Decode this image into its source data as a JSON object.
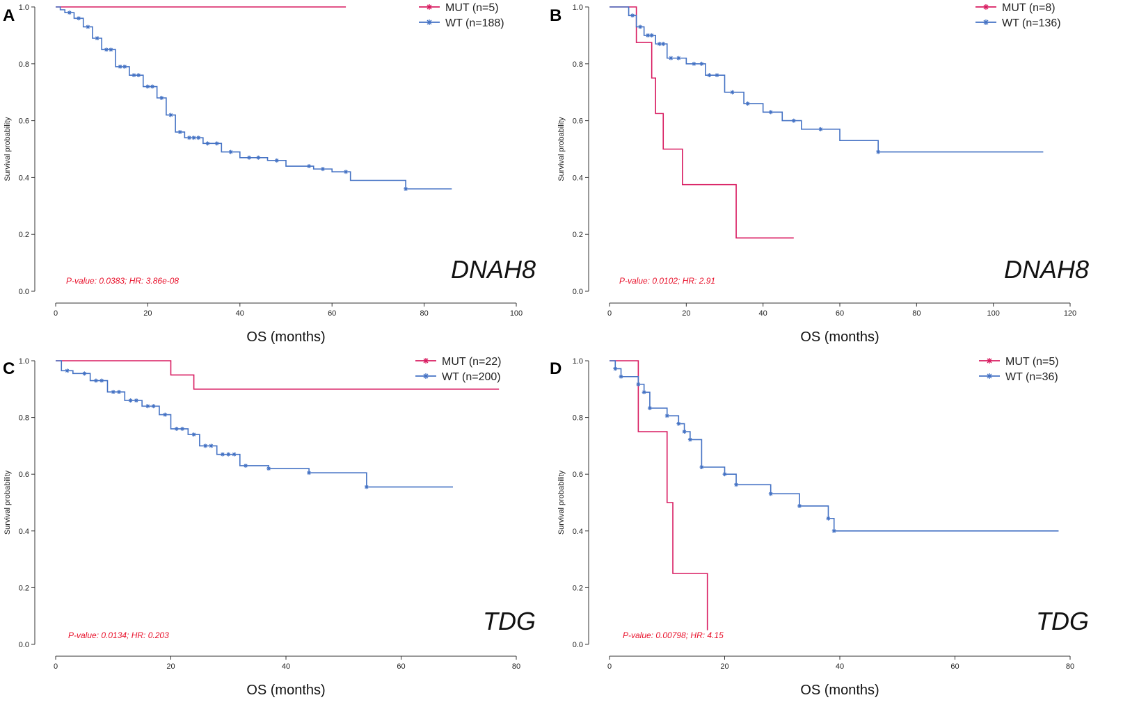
{
  "colors": {
    "mut": "#d81b60",
    "wt": "#4472c4",
    "pvalue": "#e8102a"
  },
  "chart_data": [
    {
      "type": "line",
      "panel": "A",
      "gene": "DNAH8",
      "ylabel": "Survival probability",
      "xlabel": "OS (months)",
      "xlim": [
        0,
        100
      ],
      "ylim": [
        0,
        1
      ],
      "xticks": [
        0,
        20,
        40,
        60,
        80,
        100
      ],
      "yticks": [
        0.0,
        0.2,
        0.4,
        0.6,
        0.8,
        1.0
      ],
      "pvalue_text": "P-value: 0.0383; HR: 3.86e-08",
      "series": [
        {
          "name": "MUT (n=5)",
          "key": "mut",
          "x": [
            0,
            63
          ],
          "y": [
            1.0,
            1.0
          ],
          "censor_x": []
        },
        {
          "name": "WT (n=188)",
          "key": "wt",
          "x": [
            0,
            1,
            2,
            4,
            6,
            8,
            10,
            13,
            16,
            19,
            22,
            24,
            26,
            28,
            32,
            36,
            40,
            46,
            50,
            56,
            60,
            64,
            70,
            76,
            86
          ],
          "y": [
            1.0,
            0.99,
            0.98,
            0.96,
            0.93,
            0.89,
            0.85,
            0.79,
            0.76,
            0.72,
            0.68,
            0.62,
            0.56,
            0.54,
            0.52,
            0.49,
            0.47,
            0.46,
            0.44,
            0.43,
            0.42,
            0.39,
            0.39,
            0.36,
            0.36
          ],
          "censor_x": [
            3,
            5,
            7,
            9,
            11,
            12,
            14,
            15,
            17,
            18,
            20,
            21,
            23,
            25,
            27,
            29,
            30,
            31,
            33,
            35,
            38,
            42,
            44,
            48,
            55,
            58,
            63,
            76
          ]
        }
      ]
    },
    {
      "type": "line",
      "panel": "B",
      "gene": "DNAH8",
      "ylabel": "Survival probability",
      "xlabel": "OS (months)",
      "xlim": [
        0,
        120
      ],
      "ylim": [
        0,
        1
      ],
      "xticks": [
        0,
        20,
        40,
        60,
        80,
        100,
        120
      ],
      "yticks": [
        0.0,
        0.2,
        0.4,
        0.6,
        0.8,
        1.0
      ],
      "pvalue_text": "P-value: 0.0102; HR: 2.91",
      "series": [
        {
          "name": "MUT (n=8)",
          "key": "mut",
          "x": [
            0,
            7,
            11,
            12,
            14,
            19,
            33,
            48
          ],
          "y": [
            1.0,
            0.875,
            0.75,
            0.625,
            0.5,
            0.375,
            0.1875,
            0.1875
          ],
          "censor_x": []
        },
        {
          "name": "WT (n=136)",
          "key": "wt",
          "x": [
            0,
            5,
            7,
            9,
            12,
            15,
            20,
            25,
            30,
            35,
            40,
            45,
            50,
            60,
            70,
            113
          ],
          "y": [
            1.0,
            0.97,
            0.93,
            0.9,
            0.87,
            0.82,
            0.8,
            0.76,
            0.7,
            0.66,
            0.63,
            0.6,
            0.57,
            0.53,
            0.49,
            0.49
          ],
          "censor_x": [
            6,
            8,
            10,
            11,
            13,
            14,
            16,
            18,
            22,
            24,
            26,
            28,
            32,
            36,
            42,
            48,
            55,
            70
          ]
        }
      ]
    },
    {
      "type": "line",
      "panel": "C",
      "gene": "TDG",
      "ylabel": "Survival probability",
      "xlabel": "OS (months)",
      "xlim": [
        0,
        80
      ],
      "ylim": [
        0,
        1
      ],
      "xticks": [
        0,
        20,
        40,
        60,
        80
      ],
      "yticks": [
        0.0,
        0.2,
        0.4,
        0.6,
        0.8,
        1.0
      ],
      "pvalue_text": "P-value: 0.0134; HR: 0.203",
      "series": [
        {
          "name": "MUT (n=22)",
          "key": "mut",
          "x": [
            0,
            20,
            24,
            77
          ],
          "y": [
            1.0,
            0.95,
            0.9,
            0.9
          ],
          "censor_x": []
        },
        {
          "name": "WT (n=200)",
          "key": "wt",
          "x": [
            0,
            1,
            3,
            6,
            9,
            12,
            15,
            18,
            20,
            23,
            25,
            28,
            32,
            37,
            44,
            54,
            69
          ],
          "y": [
            1.0,
            0.965,
            0.955,
            0.93,
            0.89,
            0.86,
            0.84,
            0.81,
            0.76,
            0.74,
            0.7,
            0.67,
            0.63,
            0.62,
            0.605,
            0.555,
            0.555
          ],
          "censor_x": [
            2,
            5,
            7,
            8,
            10,
            11,
            13,
            14,
            16,
            17,
            19,
            21,
            22,
            24,
            26,
            27,
            29,
            30,
            31,
            33,
            37,
            44,
            54
          ]
        }
      ]
    },
    {
      "type": "line",
      "panel": "D",
      "gene": "TDG",
      "ylabel": "Survival probability",
      "xlabel": "OS (months)",
      "xlim": [
        0,
        80
      ],
      "ylim": [
        0,
        1
      ],
      "xticks": [
        0,
        20,
        40,
        60,
        80
      ],
      "yticks": [
        0.0,
        0.2,
        0.4,
        0.6,
        0.8,
        1.0
      ],
      "pvalue_text": "P-value: 0.00798; HR: 4.15",
      "series": [
        {
          "name": "MUT (n=5)",
          "key": "mut",
          "x": [
            0,
            5,
            10,
            11,
            17,
            17
          ],
          "y": [
            1.0,
            0.75,
            0.5,
            0.25,
            0.25,
            0.05
          ],
          "censor_x": []
        },
        {
          "name": "WT (n=36)",
          "key": "wt",
          "x": [
            0,
            1,
            2,
            5,
            6,
            7,
            10,
            12,
            13,
            14,
            16,
            20,
            22,
            28,
            33,
            38,
            39,
            78
          ],
          "y": [
            1.0,
            0.972,
            0.944,
            0.917,
            0.889,
            0.833,
            0.806,
            0.778,
            0.75,
            0.722,
            0.625,
            0.6,
            0.563,
            0.531,
            0.488,
            0.444,
            0.4,
            0.4
          ],
          "censor_x": [
            1,
            2,
            5,
            6,
            7,
            10,
            12,
            13,
            14,
            16,
            20,
            22,
            28,
            33,
            38,
            39
          ]
        }
      ]
    }
  ]
}
